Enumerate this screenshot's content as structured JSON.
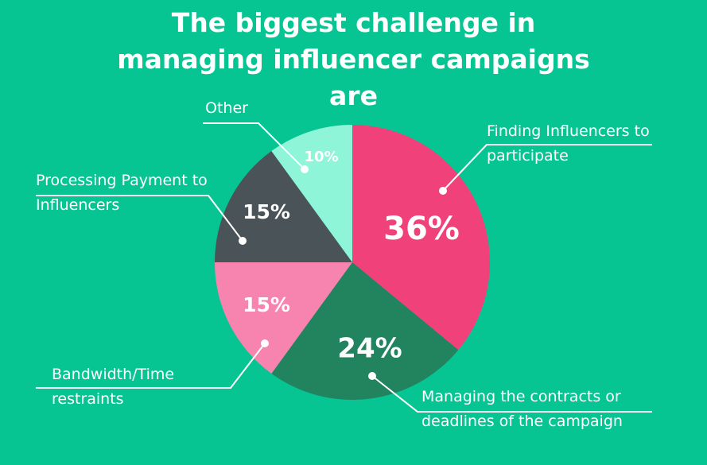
{
  "chart_data": {
    "type": "pie",
    "title": "The biggest challenge in managing influencer campaigns are",
    "categories": [
      "Finding Influencers to participate",
      "Managing the contracts or deadlines of the campaign",
      "Bandwidth/Time restraints",
      "Processing Payment to Influencers",
      "Other"
    ],
    "values": [
      36,
      24,
      15,
      15,
      10
    ],
    "value_labels": [
      "36%",
      "24%",
      "15%",
      "15%",
      "10%"
    ],
    "colors": [
      "#f0417b",
      "#22835f",
      "#f784ae",
      "#4a5358",
      "#8ef5d8"
    ]
  }
}
